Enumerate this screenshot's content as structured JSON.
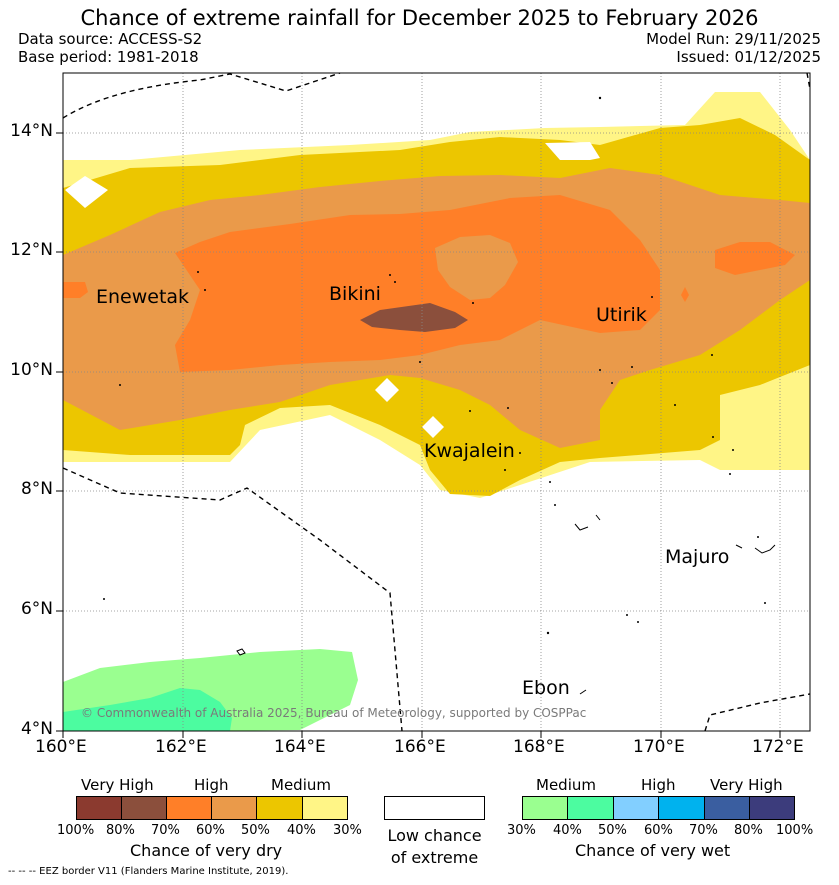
{
  "title": "Chance of extreme rainfall for December 2025 to February 2026",
  "data_source": "Data source: ACCESS-S2",
  "base_period": "Base period: 1981-2018",
  "model_run": "Model Run: 29/11/2025",
  "issued": "Issued: 01/12/2025",
  "lat_labels": [
    "14°N",
    "12°N",
    "10°N",
    "8°N",
    "6°N",
    "4°N"
  ],
  "lon_labels": [
    "160°E",
    "162°E",
    "164°E",
    "166°E",
    "168°E",
    "170°E",
    "172°E"
  ],
  "places": {
    "enewetak": "Enewetak",
    "bikini": "Bikini",
    "utirik": "Utirik",
    "kwajalein": "Kwajalein",
    "majuro": "Majuro",
    "ebon": "Ebon"
  },
  "copyright": "© Commonwealth of Australia 2025, Bureau of Meteorology, supported by COSPPac",
  "colors": {
    "dry_80": "#8b3a2f",
    "dry_70": "#8b4f3c",
    "dry_60": "#ff7f28",
    "dry_50": "#ea9a4a",
    "dry_40": "#ecc600",
    "dry_30": "#fff586",
    "wet_30": "#9aff90",
    "wet_40": "#4cfca0",
    "wet_50": "#82cfff",
    "wet_60": "#00b2ee",
    "wet_70": "#3a5ea0",
    "wet_80": "#3c3c7c"
  },
  "legend": {
    "dry": {
      "headers": [
        "Very High",
        "High",
        "Medium"
      ],
      "pcts": [
        "100%",
        "80%",
        "70%",
        "60%",
        "50%",
        "40%",
        "30%"
      ],
      "title": "Chance of very dry"
    },
    "low": {
      "line1": "Low chance",
      "line2": "of extreme"
    },
    "wet": {
      "headers": [
        "Medium",
        "High",
        "Very High"
      ],
      "pcts": [
        "30%",
        "40%",
        "50%",
        "60%",
        "70%",
        "80%",
        "100%"
      ],
      "title": "Chance of very wet"
    }
  },
  "eez_note": "--  --  -- EEZ border V11 (Flanders Marine Institute, 2019)."
}
